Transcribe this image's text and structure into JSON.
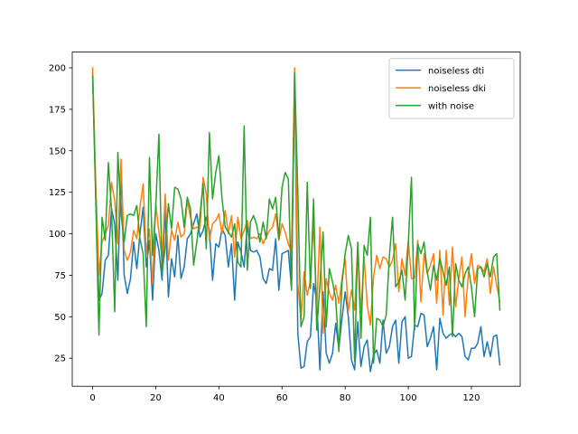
{
  "chart_data": {
    "type": "line",
    "title": "",
    "xlabel": "",
    "ylabel": "",
    "xlim": [
      -6.45,
      135.45
    ],
    "ylim": [
      8.1,
      209.5
    ],
    "xticks": [
      0,
      20,
      40,
      60,
      80,
      100,
      120
    ],
    "yticks": [
      25,
      50,
      75,
      100,
      125,
      150,
      175,
      200
    ],
    "grid": false,
    "legend_position": "top-right",
    "series": [
      {
        "name": "noiseless dti",
        "color": "#1f77b4",
        "values": [
          197,
          125,
          60,
          64,
          84,
          87,
          115,
          106,
          72,
          138,
          75,
          64,
          73,
          95,
          79,
          100,
          116,
          80,
          96,
          60,
          100,
          90,
          72,
          115,
          62,
          85,
          74,
          99,
          73,
          80,
          97,
          100,
          106,
          112,
          98,
          102,
          110,
          102,
          72,
          94,
          92,
          103,
          99,
          80,
          94,
          60,
          95,
          89,
          80,
          106,
          90,
          89,
          90,
          86,
          73,
          70,
          79,
          78,
          97,
          66,
          88,
          89,
          90,
          67,
          196,
          40,
          19,
          20,
          35,
          38,
          70,
          60,
          18,
          65,
          28,
          22,
          28,
          46,
          31,
          49,
          65,
          50,
          24,
          18,
          47,
          20,
          32,
          36,
          17,
          27,
          30,
          22,
          48,
          28,
          32,
          44,
          48,
          22,
          47,
          50,
          25,
          26,
          45,
          44,
          52,
          51,
          32,
          37,
          44,
          18,
          49,
          40,
          37,
          39,
          40,
          38,
          40,
          38,
          26,
          24,
          31,
          31,
          34,
          44,
          26,
          35,
          26,
          38,
          39,
          21
        ]
      },
      {
        "name": "noiseless dki",
        "color": "#ff7f0e",
        "values": [
          200,
          130,
          75,
          95,
          100,
          105,
          131,
          120,
          94,
          145,
          90,
          84,
          89,
          102,
          97,
          116,
          130,
          88,
          103,
          70,
          118,
          101,
          84,
          124,
          84,
          102,
          96,
          107,
          98,
          100,
          120,
          110,
          103,
          104,
          103,
          134,
          124,
          96,
          106,
          108,
          112,
          100,
          114,
          100,
          111,
          86,
          110,
          97,
          102,
          108,
          97,
          98,
          97,
          100,
          94,
          98,
          102,
          104,
          112,
          96,
          106,
          101,
          94,
          89,
          200,
          70,
          48,
          77,
          63,
          72,
          107,
          54,
          104,
          40,
          73,
          64,
          60,
          69,
          58,
          73,
          85,
          53,
          66,
          54,
          94,
          52,
          86,
          57,
          45,
          74,
          87,
          79,
          86,
          85,
          80,
          84,
          94,
          65,
          85,
          75,
          96,
          73,
          73,
          96,
          59,
          88,
          76,
          81,
          88,
          58,
          90,
          51,
          90,
          57,
          92,
          56,
          73,
          86,
          50,
          75,
          88,
          70,
          81,
          80,
          77,
          85,
          64,
          80,
          69,
          59
        ]
      },
      {
        "name": "with noise",
        "color": "#2ca02c",
        "values": [
          195,
          120,
          39,
          110,
          96,
          143,
          114,
          53,
          149,
          112,
          95,
          111,
          112,
          111,
          117,
          97,
          88,
          44,
          146,
          87,
          116,
          160,
          76,
          92,
          118,
          103,
          128,
          127,
          121,
          104,
          122,
          115,
          81,
          95,
          111,
          130,
          91,
          161,
          121,
          137,
          147,
          121,
          104,
          101,
          98,
          106,
          83,
          80,
          165,
          78,
          107,
          111,
          105,
          95,
          107,
          97,
          121,
          115,
          122,
          97,
          128,
          137,
          133,
          66,
          197,
          125,
          44,
          50,
          131,
          67,
          121,
          42,
          69,
          101,
          44,
          79,
          71,
          61,
          29,
          70,
          88,
          99,
          91,
          23,
          95,
          37,
          93,
          87,
          110,
          22,
          49,
          48,
          44,
          51,
          86,
          110,
          68,
          71,
          78,
          60,
          94,
          134,
          42,
          94,
          88,
          95,
          77,
          66,
          81,
          72,
          85,
          77,
          69,
          80,
          38,
          82,
          72,
          68,
          76,
          80,
          68,
          50,
          79,
          80,
          74,
          82,
          74,
          86,
          88,
          54
        ]
      }
    ]
  }
}
